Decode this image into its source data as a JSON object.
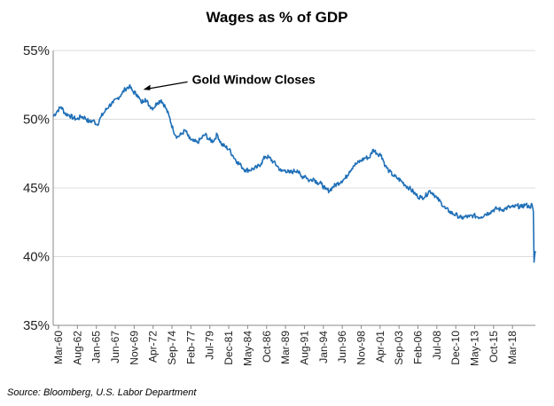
{
  "chart_data": {
    "type": "line",
    "title": "Wages as % of GDP",
    "xlabel": "",
    "ylabel": "",
    "ylim": [
      35,
      55
    ],
    "y_ticks": [
      35,
      40,
      45,
      50,
      55
    ],
    "y_tick_labels": [
      "35%",
      "40%",
      "45%",
      "50%",
      "55%"
    ],
    "x_tick_labels": [
      "Mar-60",
      "Aug-62",
      "Jan-65",
      "Jun-67",
      "Nov-69",
      "Apr-72",
      "Sep-74",
      "Feb-77",
      "Jul-79",
      "Dec-81",
      "May-84",
      "Oct-86",
      "Mar-89",
      "Aug-91",
      "Jan-94",
      "Jun-96",
      "Nov-98",
      "Apr-01",
      "Sep-03",
      "Feb-06",
      "Jul-08",
      "Dec-10",
      "May-13",
      "Oct-15",
      "Mar-18"
    ],
    "xlim": [
      "1960-03",
      "2020-06"
    ],
    "grid": "horizontal",
    "line_color": "#1f6fb7",
    "annotation": {
      "text": "Gold Window Closes",
      "x": "1971-06",
      "y": 52.2
    },
    "series": [
      {
        "x": [
          "1960-03",
          "1960-09",
          "1961-03",
          "1961-09",
          "1962-03",
          "1962-09",
          "1963-03",
          "1963-09",
          "1964-03",
          "1964-09",
          "1965-03",
          "1965-09",
          "1966-03",
          "1966-09",
          "1967-03",
          "1967-09",
          "1968-03",
          "1968-09",
          "1969-03",
          "1969-09",
          "1970-03",
          "1970-09",
          "1971-03",
          "1971-09",
          "1972-03",
          "1972-09",
          "1973-03",
          "1973-09",
          "1974-03",
          "1974-09",
          "1975-03",
          "1975-09",
          "1976-03",
          "1976-09",
          "1977-03",
          "1977-09",
          "1978-03",
          "1978-09",
          "1979-03",
          "1979-09",
          "1980-03",
          "1980-09",
          "1981-03",
          "1981-09",
          "1982-03",
          "1982-09",
          "1983-03",
          "1983-09",
          "1984-03",
          "1984-09",
          "1985-03",
          "1985-09",
          "1986-03",
          "1986-09",
          "1987-03",
          "1987-09",
          "1988-03",
          "1988-09",
          "1989-03",
          "1989-09",
          "1990-03",
          "1990-09",
          "1991-03",
          "1991-09",
          "1992-03",
          "1992-09",
          "1993-03",
          "1993-09",
          "1994-03",
          "1994-09",
          "1995-03",
          "1995-09",
          "1996-03",
          "1996-09",
          "1997-03",
          "1997-09",
          "1998-03",
          "1998-09",
          "1999-03",
          "1999-09",
          "2000-03",
          "2000-09",
          "2001-03",
          "2001-09",
          "2002-03",
          "2002-09",
          "2003-03",
          "2003-09",
          "2004-03",
          "2004-09",
          "2005-03",
          "2005-09",
          "2006-03",
          "2006-09",
          "2007-03",
          "2007-09",
          "2008-03",
          "2008-09",
          "2009-03",
          "2009-09",
          "2010-03",
          "2010-09",
          "2011-03",
          "2011-09",
          "2012-03",
          "2012-09",
          "2013-03",
          "2013-09",
          "2014-03",
          "2014-09",
          "2015-03",
          "2015-09",
          "2016-03",
          "2016-09",
          "2017-03",
          "2017-09",
          "2018-03",
          "2018-09",
          "2019-03",
          "2019-09",
          "2020-01",
          "2020-03",
          "2020-04",
          "2020-05",
          "2020-06"
        ],
        "values": [
          50.2,
          50.6,
          50.9,
          50.4,
          50.3,
          50.1,
          50.0,
          50.2,
          50.1,
          49.8,
          49.9,
          49.6,
          50.2,
          50.6,
          51.0,
          51.2,
          51.5,
          51.8,
          52.2,
          52.4,
          52.0,
          51.8,
          51.2,
          51.5,
          51.0,
          50.8,
          51.2,
          51.4,
          50.9,
          50.2,
          49.2,
          48.7,
          48.9,
          49.2,
          48.6,
          48.4,
          48.3,
          48.6,
          48.9,
          48.5,
          48.4,
          48.9,
          48.2,
          48.0,
          47.8,
          47.3,
          46.9,
          46.6,
          46.3,
          46.3,
          46.4,
          46.5,
          46.8,
          47.3,
          47.2,
          46.9,
          46.6,
          46.2,
          46.3,
          46.1,
          46.2,
          46.3,
          45.8,
          45.9,
          45.5,
          45.7,
          45.4,
          45.3,
          44.9,
          44.8,
          45.1,
          45.3,
          45.5,
          45.7,
          46.2,
          46.6,
          46.8,
          47.0,
          47.2,
          47.2,
          47.8,
          47.5,
          47.4,
          46.6,
          46.2,
          45.9,
          45.7,
          45.5,
          45.2,
          45.0,
          44.7,
          44.4,
          44.3,
          44.4,
          44.8,
          44.6,
          44.2,
          43.9,
          43.5,
          43.3,
          43.1,
          43.0,
          42.8,
          42.9,
          42.9,
          43.0,
          42.9,
          42.9,
          43.1,
          43.2,
          43.4,
          43.5,
          43.4,
          43.5,
          43.6,
          43.6,
          43.7,
          43.6,
          43.8,
          43.6,
          43.8,
          43.3,
          39.6,
          40.1,
          40.4
        ]
      }
    ]
  },
  "source_text": "Source: Bloomberg, U.S. Labor Department"
}
